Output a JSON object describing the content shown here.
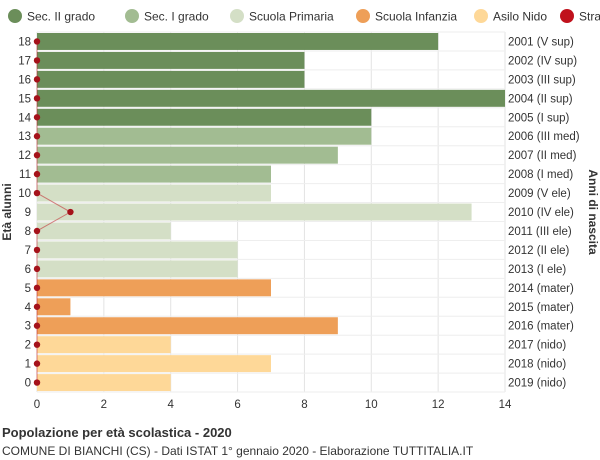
{
  "chart_data": {
    "type": "bar",
    "orientation": "horizontal",
    "title": "Popolazione per età scolastica - 2020",
    "subtitle": "COMUNE DI BIANCHI (CS) - Dati ISTAT 1° gennaio 2020 - Elaborazione TUTTITALIA.IT",
    "ylabel_left": "Età alunni",
    "ylabel_right": "Anni di nascita",
    "xlim": [
      0,
      14
    ],
    "xticks": [
      0,
      2,
      4,
      6,
      8,
      10,
      12,
      14
    ],
    "grid": true,
    "legend_position": "top",
    "legend": [
      {
        "label": "Sec. II grado",
        "color": "#6b8e5a"
      },
      {
        "label": "Sec. I grado",
        "color": "#a2bc92"
      },
      {
        "label": "Scuola Primaria",
        "color": "#d4dfc6"
      },
      {
        "label": "Scuola Infanzia",
        "color": "#ee9f58"
      },
      {
        "label": "Asilo Nido",
        "color": "#fed898"
      },
      {
        "label": "Stranieri",
        "color": "#c0111c"
      }
    ],
    "rows": [
      {
        "age": "18",
        "birth": "2001 (V sup)",
        "value": 12,
        "group": 0,
        "stranieri": 0
      },
      {
        "age": "17",
        "birth": "2002 (IV sup)",
        "value": 8,
        "group": 0,
        "stranieri": 0
      },
      {
        "age": "16",
        "birth": "2003 (III sup)",
        "value": 8,
        "group": 0,
        "stranieri": 0
      },
      {
        "age": "15",
        "birth": "2004 (II sup)",
        "value": 14,
        "group": 0,
        "stranieri": 0
      },
      {
        "age": "14",
        "birth": "2005 (I sup)",
        "value": 10,
        "group": 0,
        "stranieri": 0
      },
      {
        "age": "13",
        "birth": "2006 (III med)",
        "value": 10,
        "group": 1,
        "stranieri": 0
      },
      {
        "age": "12",
        "birth": "2007 (II med)",
        "value": 9,
        "group": 1,
        "stranieri": 0
      },
      {
        "age": "11",
        "birth": "2008 (I med)",
        "value": 7,
        "group": 1,
        "stranieri": 0
      },
      {
        "age": "10",
        "birth": "2009 (V ele)",
        "value": 7,
        "group": 2,
        "stranieri": 0
      },
      {
        "age": "9",
        "birth": "2010 (IV ele)",
        "value": 13,
        "group": 2,
        "stranieri": 1
      },
      {
        "age": "8",
        "birth": "2011 (III ele)",
        "value": 4,
        "group": 2,
        "stranieri": 0
      },
      {
        "age": "7",
        "birth": "2012 (II ele)",
        "value": 6,
        "group": 2,
        "stranieri": 0
      },
      {
        "age": "6",
        "birth": "2013 (I ele)",
        "value": 6,
        "group": 2,
        "stranieri": 0
      },
      {
        "age": "5",
        "birth": "2014 (mater)",
        "value": 7,
        "group": 3,
        "stranieri": 0
      },
      {
        "age": "4",
        "birth": "2015 (mater)",
        "value": 1,
        "group": 3,
        "stranieri": 0
      },
      {
        "age": "3",
        "birth": "2016 (mater)",
        "value": 9,
        "group": 3,
        "stranieri": 0
      },
      {
        "age": "2",
        "birth": "2017 (nido)",
        "value": 4,
        "group": 4,
        "stranieri": 0
      },
      {
        "age": "1",
        "birth": "2018 (nido)",
        "value": 7,
        "group": 4,
        "stranieri": 0
      },
      {
        "age": "0",
        "birth": "2019 (nido)",
        "value": 4,
        "group": 4,
        "stranieri": 0
      }
    ]
  }
}
